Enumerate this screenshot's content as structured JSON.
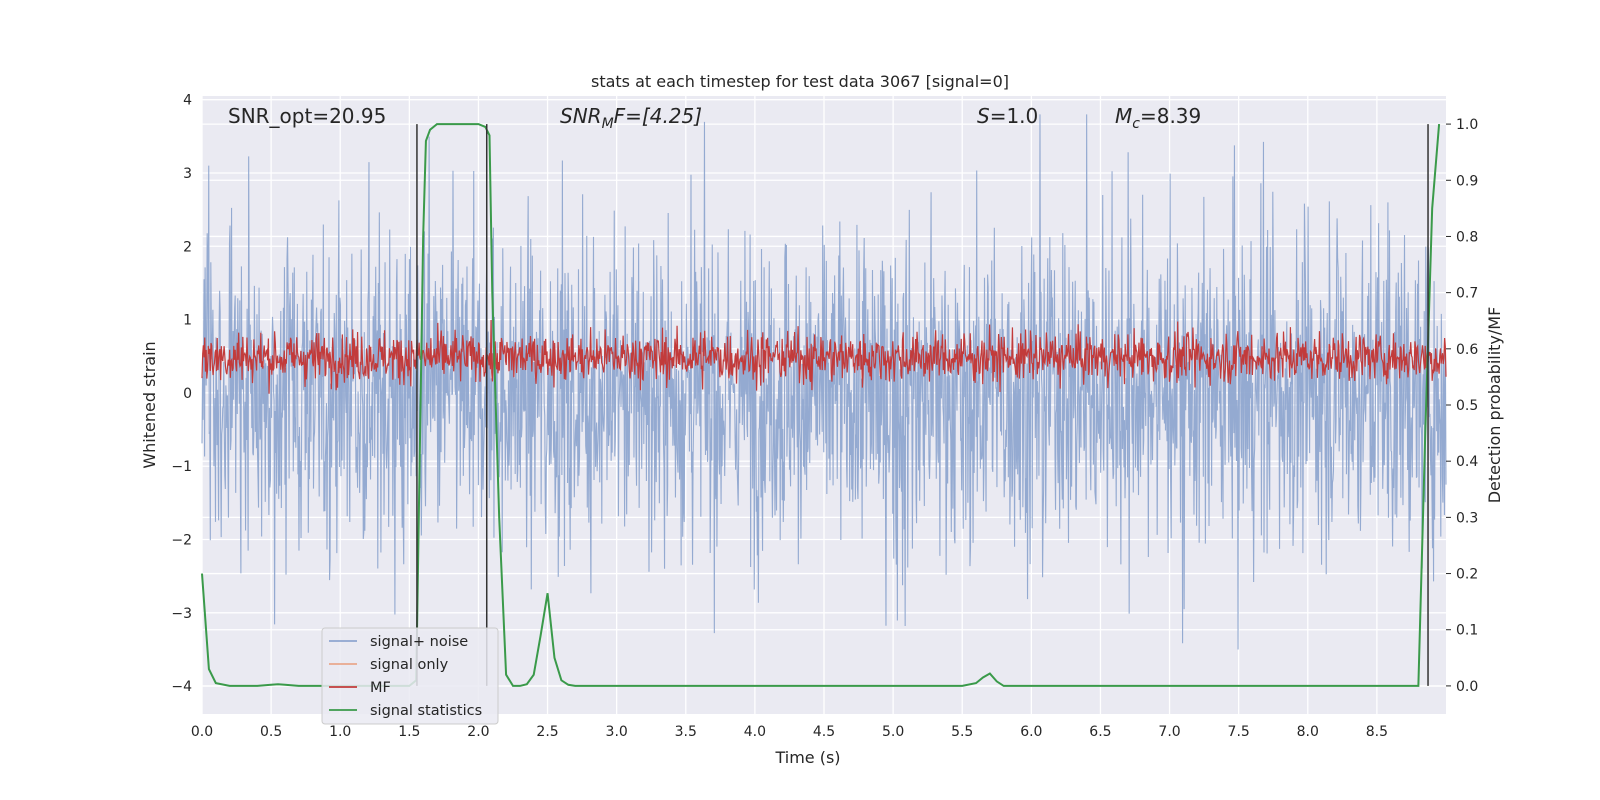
{
  "chart_data": {
    "type": "line",
    "title": "stats at each timestep for test data 3067 [signal=0]",
    "xlabel": "Time (s)",
    "ylabel_left": "Whitened strain",
    "ylabel_right": "Detection probability/MF",
    "xlim": [
      0.0,
      9.0
    ],
    "ylim_left": [
      -4.38,
      4.05
    ],
    "ylim_right": [
      -0.05,
      1.05
    ],
    "xticks": [
      0.0,
      0.5,
      1.0,
      1.5,
      2.0,
      2.5,
      3.0,
      3.5,
      4.0,
      4.5,
      5.0,
      5.5,
      6.0,
      6.5,
      7.0,
      7.5,
      8.0,
      8.5
    ],
    "xtick_labels": [
      "0.0",
      "0.5",
      "1.0",
      "1.5",
      "2.0",
      "2.5",
      "3.0",
      "3.5",
      "4.0",
      "4.5",
      "5.0",
      "5.5",
      "6.0",
      "6.5",
      "7.0",
      "7.5",
      "8.0",
      "8.5"
    ],
    "yticks_left": [
      -4,
      -3,
      -2,
      -1,
      0,
      1,
      2,
      3,
      4
    ],
    "ytick_labels_left": [
      "−4",
      "−3",
      "−2",
      "−1",
      "0",
      "1",
      "2",
      "3",
      "4"
    ],
    "yticks_right": [
      0.0,
      0.1,
      0.2,
      0.3,
      0.4,
      0.5,
      0.6,
      0.7,
      0.8,
      0.9,
      1.0
    ],
    "ytick_labels_right": [
      "0.0",
      "0.1",
      "0.2",
      "0.3",
      "0.4",
      "0.5",
      "0.6",
      "0.7",
      "0.8",
      "0.9",
      "1.0"
    ],
    "annotations": {
      "snr_opt": "SNR_opt=20.95",
      "snr_mf_sym": "SNR",
      "snr_mf_sub": "M",
      "snr_mf_rest": "F=[4.25]",
      "s_sym": "S",
      "s_rest": "=1.0",
      "mc_sym": "M",
      "mc_sub": "c",
      "mc_rest": "=8.39"
    },
    "legend": {
      "position": "lower-left",
      "entries": [
        {
          "label": "signal+ noise",
          "color": "#8fa6cf"
        },
        {
          "label": "signal only",
          "color": "#e9a88c"
        },
        {
          "label": "MF",
          "color": "#c23b3b"
        },
        {
          "label": "signal statistics",
          "color": "#3a9a4a"
        }
      ]
    },
    "series": [
      {
        "name": "signal+ noise",
        "axis": "left",
        "color": "#8fa6cf",
        "t_start": 0.0,
        "t_end": 9.0,
        "envelope_max": 3.8,
        "envelope_min": -3.5
      },
      {
        "name": "signal only",
        "axis": "left",
        "color": "#e9a88c",
        "values": []
      },
      {
        "name": "MF",
        "axis": "right",
        "color": "#c23b3b",
        "t_start": 0.0,
        "t_end": 9.0,
        "range": [
          0.52,
          0.65
        ],
        "peak": 0.66
      },
      {
        "name": "signal statistics",
        "axis": "right",
        "color": "#3a9a4a",
        "x": [
          0.0,
          0.05,
          0.1,
          0.2,
          0.3,
          0.4,
          0.5,
          0.55,
          0.6,
          0.7,
          1.0,
          1.4,
          1.5,
          1.55,
          1.6,
          1.62,
          1.65,
          1.7,
          1.8,
          2.0,
          2.05,
          2.08,
          2.1,
          2.15,
          2.2,
          2.25,
          2.3,
          2.35,
          2.4,
          2.45,
          2.5,
          2.55,
          2.6,
          2.65,
          2.7,
          2.8,
          3.0,
          5.0,
          5.5,
          5.6,
          5.65,
          5.7,
          5.75,
          5.8,
          6.0,
          8.8,
          8.85,
          8.9,
          8.95
        ],
        "y": [
          0.2,
          0.03,
          0.005,
          0.0,
          0.0,
          0.0,
          0.002,
          0.003,
          0.002,
          0.0,
          0.0,
          0.0,
          0.0,
          0.01,
          0.8,
          0.97,
          0.99,
          1.0,
          1.0,
          1.0,
          0.995,
          0.98,
          0.7,
          0.3,
          0.02,
          0.0,
          0.0,
          0.003,
          0.02,
          0.09,
          0.165,
          0.05,
          0.01,
          0.002,
          0.0,
          0.0,
          0.0,
          0.0,
          0.0,
          0.005,
          0.015,
          0.022,
          0.008,
          0.0,
          0.0,
          0.0,
          0.45,
          0.85,
          1.0
        ]
      },
      {
        "name": "vertical markers",
        "axis": "right",
        "color": "#333333",
        "x": [
          1.555,
          2.06,
          8.87
        ],
        "y_range": [
          0.0,
          1.0
        ]
      }
    ]
  }
}
